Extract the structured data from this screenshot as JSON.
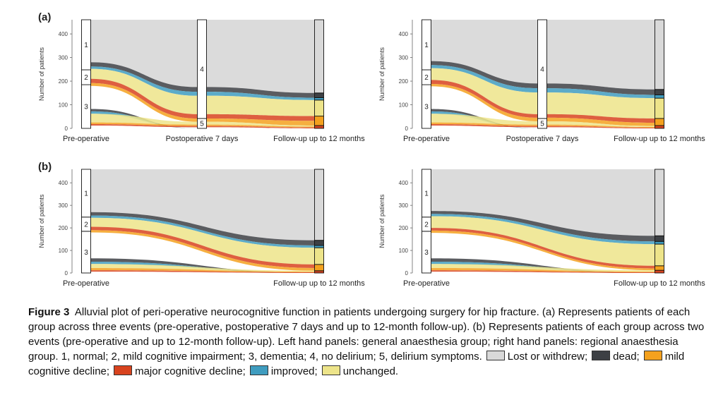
{
  "panel_labels": [
    "(a)",
    "(b)"
  ],
  "colors": {
    "lost": "#d9d9d9",
    "dead": "#3d4044",
    "mild": "#f4a11e",
    "major": "#d8431e",
    "improved": "#3f9cbf",
    "unchanged": "#ede48a"
  },
  "chart_data": [
    {
      "type": "alluvial",
      "panel": "(a)",
      "side": "left",
      "ylabel": "Number of patients",
      "ylim": [
        0,
        460
      ],
      "yticks": [
        0,
        100,
        200,
        300,
        400
      ],
      "axes": [
        "Pre-operative",
        "Postoperative 7 days",
        "Follow-up up to 12 months"
      ],
      "strata": [
        [
          {
            "label": "3",
            "from": 0,
            "to": 185
          },
          {
            "label": "2",
            "from": 185,
            "to": 248
          },
          {
            "label": "1",
            "from": 248,
            "to": 460
          }
        ],
        [
          {
            "label": "5",
            "from": 0,
            "to": 42
          },
          {
            "label": "4",
            "from": 42,
            "to": 460
          }
        ],
        [
          {
            "label": "",
            "from": 0,
            "to": 12
          },
          {
            "label": "",
            "from": 12,
            "to": 52
          },
          {
            "label": "",
            "from": 52,
            "to": 120
          },
          {
            "label": "",
            "from": 120,
            "to": 130
          },
          {
            "label": "",
            "from": 130,
            "to": 150
          },
          {
            "label": "",
            "from": 150,
            "to": 460
          }
        ]
      ],
      "levels": [
        {
          "lost": [
            280,
            460
          ],
          "dead": [
            262,
            280
          ],
          "improved": [
            252,
            262
          ],
          "unchanged": [
            210,
            252
          ],
          "major": [
            192,
            210
          ],
          "mild": [
            180,
            192
          ],
          "dead2": [
            72,
            82
          ],
          "improved2": [
            62,
            72
          ],
          "unchanged2": [
            25,
            62
          ],
          "mild2": [
            18,
            25
          ],
          "major2": [
            12,
            18
          ]
        },
        {
          "lost": [
            175,
            460
          ],
          "dead": [
            155,
            175
          ],
          "improved": [
            138,
            155
          ],
          "unchanged": [
            60,
            138
          ],
          "major": [
            42,
            60
          ],
          "mild": [
            28,
            42
          ],
          "dead2": [
            0,
            0
          ],
          "improved2": [
            0,
            0
          ],
          "unchanged2": [
            16,
            28
          ],
          "mild2": [
            10,
            16
          ],
          "major2": [
            5,
            10
          ]
        },
        {
          "lost": [
            150,
            460
          ],
          "dead": [
            130,
            150
          ],
          "improved": [
            120,
            130
          ],
          "unchanged": [
            52,
            120
          ],
          "major": [
            32,
            52
          ],
          "mild": [
            12,
            32
          ],
          "dead2": [
            0,
            0
          ],
          "improved2": [
            0,
            0
          ],
          "unchanged2": [
            8,
            12
          ],
          "mild2": [
            4,
            8
          ],
          "major2": [
            0,
            4
          ]
        }
      ]
    },
    {
      "type": "alluvial",
      "panel": "(a)",
      "side": "right",
      "ylabel": "Number of patients",
      "ylim": [
        0,
        460
      ],
      "yticks": [
        0,
        100,
        200,
        300,
        400
      ],
      "axes": [
        "Pre-operative",
        "Postoperative 7 days",
        "Follow-up up to 12 months"
      ],
      "strata": [
        [
          {
            "label": "3",
            "from": 0,
            "to": 185
          },
          {
            "label": "2",
            "from": 185,
            "to": 248
          },
          {
            "label": "1",
            "from": 248,
            "to": 460
          }
        ],
        [
          {
            "label": "5",
            "from": 0,
            "to": 42
          },
          {
            "label": "4",
            "from": 42,
            "to": 460
          }
        ],
        [
          {
            "label": "",
            "from": 0,
            "to": 12
          },
          {
            "label": "",
            "from": 12,
            "to": 42
          },
          {
            "label": "",
            "from": 42,
            "to": 128
          },
          {
            "label": "",
            "from": 128,
            "to": 142
          },
          {
            "label": "",
            "from": 142,
            "to": 165
          },
          {
            "label": "",
            "from": 165,
            "to": 460
          }
        ]
      ],
      "levels": [
        {
          "lost": [
            285,
            460
          ],
          "dead": [
            268,
            285
          ],
          "improved": [
            255,
            268
          ],
          "unchanged": [
            205,
            255
          ],
          "major": [
            188,
            205
          ],
          "mild": [
            178,
            188
          ],
          "dead2": [
            72,
            82
          ],
          "improved2": [
            62,
            72
          ],
          "unchanged2": [
            25,
            62
          ],
          "mild2": [
            18,
            25
          ],
          "major2": [
            12,
            18
          ]
        },
        {
          "lost": [
            190,
            460
          ],
          "dead": [
            170,
            190
          ],
          "improved": [
            152,
            170
          ],
          "unchanged": [
            60,
            152
          ],
          "major": [
            45,
            60
          ],
          "mild": [
            30,
            45
          ],
          "dead2": [
            0,
            0
          ],
          "improved2": [
            0,
            0
          ],
          "unchanged2": [
            16,
            30
          ],
          "mild2": [
            10,
            16
          ],
          "major2": [
            5,
            10
          ]
        },
        {
          "lost": [
            165,
            460
          ],
          "dead": [
            142,
            165
          ],
          "improved": [
            128,
            142
          ],
          "unchanged": [
            42,
            128
          ],
          "major": [
            24,
            42
          ],
          "mild": [
            10,
            24
          ],
          "dead2": [
            0,
            0
          ],
          "improved2": [
            0,
            0
          ],
          "unchanged2": [
            6,
            10
          ],
          "mild2": [
            3,
            6
          ],
          "major2": [
            0,
            3
          ]
        }
      ]
    },
    {
      "type": "alluvial",
      "panel": "(b)",
      "side": "left",
      "ylabel": "Number of patients",
      "ylim": [
        0,
        460
      ],
      "yticks": [
        0,
        100,
        200,
        300,
        400
      ],
      "axes": [
        "Pre-operative",
        "Follow-up up to 12 months"
      ],
      "strata": [
        [
          {
            "label": "3",
            "from": 0,
            "to": 185
          },
          {
            "label": "2",
            "from": 185,
            "to": 248
          },
          {
            "label": "1",
            "from": 248,
            "to": 460
          }
        ],
        [
          {
            "label": "",
            "from": 0,
            "to": 10
          },
          {
            "label": "",
            "from": 10,
            "to": 38
          },
          {
            "label": "",
            "from": 38,
            "to": 112
          },
          {
            "label": "",
            "from": 112,
            "to": 122
          },
          {
            "label": "",
            "from": 122,
            "to": 145
          },
          {
            "label": "",
            "from": 145,
            "to": 460
          }
        ]
      ],
      "levels": [
        {
          "lost": [
            270,
            460
          ],
          "dead": [
            255,
            270
          ],
          "improved": [
            245,
            255
          ],
          "unchanged": [
            205,
            245
          ],
          "major": [
            190,
            205
          ],
          "mild": [
            180,
            190
          ],
          "dead2": [
            50,
            65
          ],
          "improved2": [
            40,
            50
          ],
          "unchanged2": [
            22,
            40
          ],
          "mild2": [
            12,
            22
          ],
          "major2": [
            6,
            12
          ]
        },
        {
          "lost": [
            145,
            460
          ],
          "dead": [
            122,
            145
          ],
          "improved": [
            112,
            122
          ],
          "unchanged": [
            38,
            112
          ],
          "major": [
            22,
            38
          ],
          "mild": [
            10,
            22
          ],
          "dead2": [
            0,
            0
          ],
          "improved2": [
            0,
            0
          ],
          "unchanged2": [
            6,
            10
          ],
          "mild2": [
            3,
            6
          ],
          "major2": [
            0,
            3
          ]
        }
      ]
    },
    {
      "type": "alluvial",
      "panel": "(b)",
      "side": "right",
      "ylabel": "Number of patients",
      "ylim": [
        0,
        460
      ],
      "yticks": [
        0,
        100,
        200,
        300,
        400
      ],
      "axes": [
        "Pre-operative",
        "Follow-up up to 12 months"
      ],
      "strata": [
        [
          {
            "label": "3",
            "from": 0,
            "to": 185
          },
          {
            "label": "2",
            "from": 185,
            "to": 248
          },
          {
            "label": "1",
            "from": 248,
            "to": 460
          }
        ],
        [
          {
            "label": "",
            "from": 0,
            "to": 12
          },
          {
            "label": "",
            "from": 12,
            "to": 32
          },
          {
            "label": "",
            "from": 32,
            "to": 128
          },
          {
            "label": "",
            "from": 128,
            "to": 140
          },
          {
            "label": "",
            "from": 140,
            "to": 165
          },
          {
            "label": "",
            "from": 165,
            "to": 460
          }
        ]
      ],
      "levels": [
        {
          "lost": [
            275,
            460
          ],
          "dead": [
            262,
            275
          ],
          "improved": [
            252,
            262
          ],
          "unchanged": [
            200,
            252
          ],
          "major": [
            188,
            200
          ],
          "mild": [
            178,
            188
          ],
          "dead2": [
            50,
            65
          ],
          "improved2": [
            40,
            50
          ],
          "unchanged2": [
            22,
            40
          ],
          "mild2": [
            12,
            22
          ],
          "major2": [
            6,
            12
          ]
        },
        {
          "lost": [
            165,
            460
          ],
          "dead": [
            140,
            165
          ],
          "improved": [
            128,
            140
          ],
          "unchanged": [
            32,
            128
          ],
          "major": [
            20,
            32
          ],
          "mild": [
            12,
            20
          ],
          "dead2": [
            0,
            0
          ],
          "improved2": [
            0,
            0
          ],
          "unchanged2": [
            6,
            12
          ],
          "mild2": [
            3,
            6
          ],
          "major2": [
            0,
            3
          ]
        }
      ]
    }
  ],
  "caption": {
    "title": "Figure 3",
    "text": "Alluvial plot of peri-operative neurocognitive function in patients undergoing surgery for hip fracture. (a) Represents patients of each group across three events (pre-operative, postoperative 7  days and up to 12-month follow-up). (b) Represents patients of each group across two events (pre-operative and up to 12-month follow-up). Left hand panels: general anaesthesia group; right hand panels: regional anaesthesia group. 1, normal; 2, mild cognitive impairment; 3, dementia; 4, no delirium; 5, delirium symptoms.",
    "legend": [
      {
        "key": "lost",
        "label": "Lost or withdrew;"
      },
      {
        "key": "dead",
        "label": "dead;"
      },
      {
        "key": "mild",
        "label": "mild cognitive decline;"
      },
      {
        "key": "major",
        "label": "major cognitive decline;"
      },
      {
        "key": "improved",
        "label": "improved;"
      },
      {
        "key": "unchanged",
        "label": "unchanged."
      }
    ]
  }
}
